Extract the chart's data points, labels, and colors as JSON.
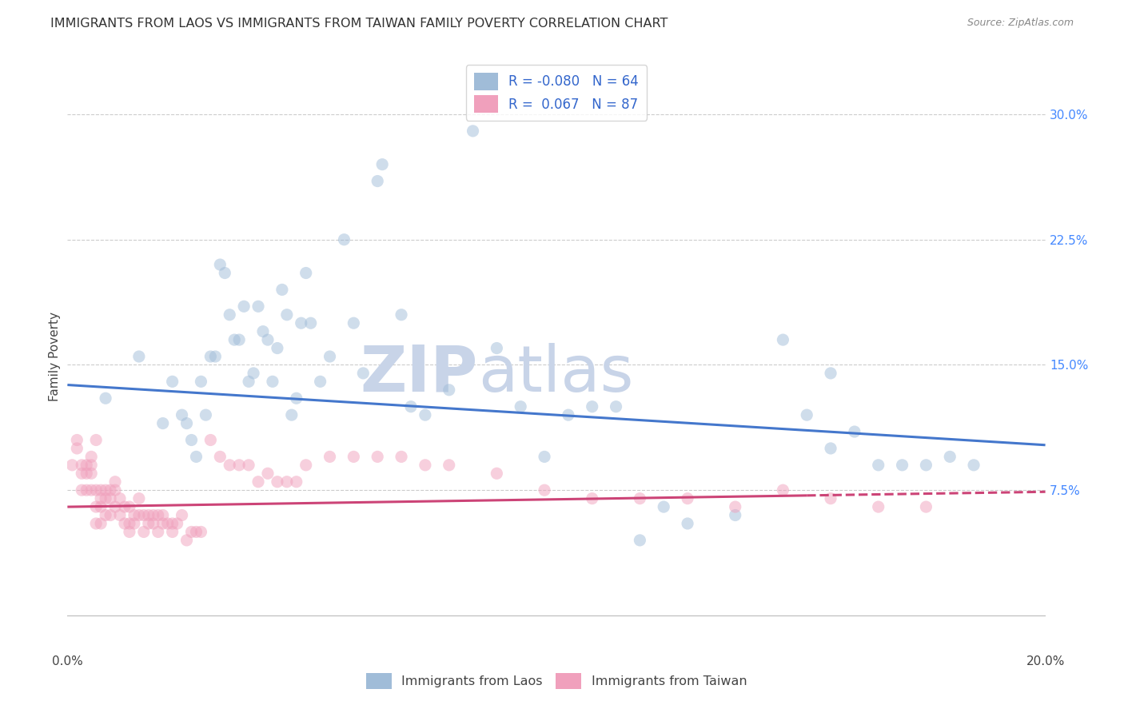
{
  "title": "IMMIGRANTS FROM LAOS VS IMMIGRANTS FROM TAIWAN FAMILY POVERTY CORRELATION CHART",
  "source": "Source: ZipAtlas.com",
  "ylabel": "Family Poverty",
  "yticks": [
    0.0,
    0.075,
    0.15,
    0.225,
    0.3
  ],
  "ytick_labels": [
    "",
    "7.5%",
    "15.0%",
    "22.5%",
    "30.0%"
  ],
  "xlim": [
    0.0,
    0.205
  ],
  "ylim": [
    -0.02,
    0.33
  ],
  "legend_entries": [
    {
      "label": "R = -0.080",
      "label2": "N = 64",
      "color": "#aac5e2"
    },
    {
      "label": "R =  0.067",
      "label2": "N = 87",
      "color": "#f2b8cb"
    }
  ],
  "legend_bottom_labels": [
    "Immigrants from Laos",
    "Immigrants from Taiwan"
  ],
  "watermark_zip": "ZIP",
  "watermark_atlas": "atlas",
  "blue_scatter_x": [
    0.008,
    0.015,
    0.02,
    0.022,
    0.024,
    0.025,
    0.026,
    0.027,
    0.028,
    0.029,
    0.03,
    0.031,
    0.032,
    0.033,
    0.034,
    0.035,
    0.036,
    0.037,
    0.038,
    0.039,
    0.04,
    0.041,
    0.042,
    0.043,
    0.044,
    0.045,
    0.046,
    0.047,
    0.048,
    0.049,
    0.05,
    0.051,
    0.053,
    0.055,
    0.058,
    0.06,
    0.062,
    0.065,
    0.066,
    0.07,
    0.072,
    0.075,
    0.08,
    0.085,
    0.09,
    0.095,
    0.1,
    0.105,
    0.11,
    0.115,
    0.12,
    0.125,
    0.13,
    0.14,
    0.15,
    0.155,
    0.16,
    0.165,
    0.17,
    0.175,
    0.18,
    0.185,
    0.19,
    0.16
  ],
  "blue_scatter_y": [
    0.13,
    0.155,
    0.115,
    0.14,
    0.12,
    0.115,
    0.105,
    0.095,
    0.14,
    0.12,
    0.155,
    0.155,
    0.21,
    0.205,
    0.18,
    0.165,
    0.165,
    0.185,
    0.14,
    0.145,
    0.185,
    0.17,
    0.165,
    0.14,
    0.16,
    0.195,
    0.18,
    0.12,
    0.13,
    0.175,
    0.205,
    0.175,
    0.14,
    0.155,
    0.225,
    0.175,
    0.145,
    0.26,
    0.27,
    0.18,
    0.125,
    0.12,
    0.135,
    0.29,
    0.16,
    0.125,
    0.095,
    0.12,
    0.125,
    0.125,
    0.045,
    0.065,
    0.055,
    0.06,
    0.165,
    0.12,
    0.1,
    0.11,
    0.09,
    0.09,
    0.09,
    0.095,
    0.09,
    0.145
  ],
  "pink_scatter_x": [
    0.001,
    0.002,
    0.002,
    0.003,
    0.003,
    0.003,
    0.004,
    0.004,
    0.004,
    0.005,
    0.005,
    0.005,
    0.005,
    0.006,
    0.006,
    0.006,
    0.006,
    0.007,
    0.007,
    0.007,
    0.007,
    0.008,
    0.008,
    0.008,
    0.009,
    0.009,
    0.009,
    0.01,
    0.01,
    0.01,
    0.011,
    0.011,
    0.012,
    0.012,
    0.013,
    0.013,
    0.013,
    0.014,
    0.014,
    0.015,
    0.015,
    0.016,
    0.016,
    0.017,
    0.017,
    0.018,
    0.018,
    0.019,
    0.019,
    0.02,
    0.02,
    0.021,
    0.022,
    0.022,
    0.023,
    0.024,
    0.025,
    0.026,
    0.027,
    0.028,
    0.03,
    0.032,
    0.034,
    0.036,
    0.038,
    0.04,
    0.042,
    0.044,
    0.046,
    0.048,
    0.05,
    0.055,
    0.06,
    0.065,
    0.07,
    0.075,
    0.08,
    0.09,
    0.1,
    0.11,
    0.12,
    0.13,
    0.14,
    0.15,
    0.16,
    0.17,
    0.18
  ],
  "pink_scatter_y": [
    0.09,
    0.105,
    0.1,
    0.09,
    0.085,
    0.075,
    0.09,
    0.085,
    0.075,
    0.095,
    0.09,
    0.085,
    0.075,
    0.105,
    0.075,
    0.065,
    0.055,
    0.075,
    0.07,
    0.065,
    0.055,
    0.075,
    0.07,
    0.06,
    0.075,
    0.07,
    0.06,
    0.08,
    0.075,
    0.065,
    0.07,
    0.06,
    0.065,
    0.055,
    0.065,
    0.055,
    0.05,
    0.06,
    0.055,
    0.07,
    0.06,
    0.06,
    0.05,
    0.06,
    0.055,
    0.06,
    0.055,
    0.06,
    0.05,
    0.06,
    0.055,
    0.055,
    0.055,
    0.05,
    0.055,
    0.06,
    0.045,
    0.05,
    0.05,
    0.05,
    0.105,
    0.095,
    0.09,
    0.09,
    0.09,
    0.08,
    0.085,
    0.08,
    0.08,
    0.08,
    0.09,
    0.095,
    0.095,
    0.095,
    0.095,
    0.09,
    0.09,
    0.085,
    0.075,
    0.07,
    0.07,
    0.07,
    0.065,
    0.075,
    0.07,
    0.065,
    0.065
  ],
  "blue_line_x": [
    0.0,
    0.205
  ],
  "blue_line_y": [
    0.138,
    0.102
  ],
  "pink_line_x": [
    0.0,
    0.205
  ],
  "pink_line_y": [
    0.065,
    0.074
  ],
  "blue_color": "#a0bcd8",
  "pink_color": "#f0a0bc",
  "blue_line_color": "#4477cc",
  "pink_line_color": "#cc4477",
  "scatter_size": 120,
  "scatter_alpha": 0.5,
  "grid_color": "#cccccc",
  "bg_color": "#ffffff",
  "title_fontsize": 11.5,
  "axis_label_fontsize": 11,
  "tick_fontsize": 11,
  "watermark_color_zip": "#c8d4e8",
  "watermark_color_atlas": "#c8d4e8",
  "watermark_fontsize": 58
}
